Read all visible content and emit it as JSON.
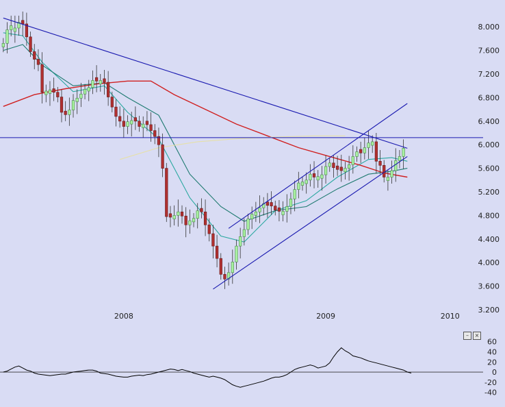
{
  "colors": {
    "background": "#d9dcf4",
    "bull_candle": "#a8f0a0",
    "bear_candle": "#b03030",
    "ma_fast": "#2aa8a0",
    "ma_mid": "#1e7a70",
    "ma_slow": "#d02020",
    "ma_long": "#e6e0a8",
    "trendline": "#1a1ab0",
    "oscillator": "#000000"
  },
  "buttons": {
    "minimize": "–",
    "close": "×"
  },
  "chart_data": [
    {
      "type": "candlestick",
      "title": "",
      "xlabel": "",
      "ylabel": "",
      "ylim": [
        3.2,
        8.2
      ],
      "y_ticks": [
        "8.000",
        "7.600",
        "7.200",
        "6.800",
        "6.400",
        "6.000",
        "5.600",
        "5.200",
        "4.800",
        "4.400",
        "4.000",
        "3.600",
        "3.200"
      ],
      "y_tick_values": [
        8.0,
        7.6,
        7.2,
        6.8,
        6.4,
        6.0,
        5.6,
        5.2,
        4.8,
        4.4,
        4.0,
        3.6,
        3.2
      ],
      "x_ticks": [
        "2008",
        "2009",
        "2010"
      ],
      "x_tick_index": [
        31,
        83,
        115
      ],
      "grid": false,
      "bar_count": 124,
      "close": [
        7.72,
        7.95,
        8.02,
        7.98,
        8.08,
        8.05,
        7.83,
        7.58,
        7.45,
        7.36,
        6.89,
        6.91,
        6.93,
        6.89,
        6.81,
        6.55,
        6.51,
        6.59,
        6.75,
        6.79,
        6.86,
        6.94,
        6.97,
        7.09,
        7.08,
        7.09,
        7.06,
        6.81,
        6.64,
        6.48,
        6.4,
        6.31,
        6.39,
        6.41,
        6.4,
        6.31,
        6.35,
        6.34,
        6.24,
        6.14,
        6.0,
        5.6,
        4.78,
        4.77,
        4.8,
        4.86,
        4.79,
        4.64,
        4.71,
        4.75,
        4.88,
        4.86,
        4.64,
        4.49,
        4.28,
        4.07,
        3.8,
        3.72,
        3.83,
        4.01,
        4.28,
        4.44,
        4.56,
        4.74,
        4.82,
        4.86,
        4.93,
        5.0,
        4.97,
        4.96,
        4.89,
        4.87,
        4.87,
        4.95,
        5.08,
        5.24,
        5.35,
        5.37,
        5.4,
        5.5,
        5.45,
        5.46,
        5.49,
        5.63,
        5.69,
        5.61,
        5.58,
        5.56,
        5.6,
        5.66,
        5.8,
        5.88,
        5.86,
        5.95,
        6.03,
        6.05,
        5.72,
        5.65,
        5.45,
        5.45,
        5.56,
        5.73,
        5.8,
        5.94
      ],
      "bull_or_bear": [
        "up",
        "up",
        "up",
        "up",
        "up",
        "dn",
        "dn",
        "dn",
        "dn",
        "dn",
        "dn",
        "up",
        "up",
        "dn",
        "dn",
        "dn",
        "dn",
        "up",
        "up",
        "up",
        "up",
        "up",
        "up",
        "up",
        "dn",
        "up",
        "dn",
        "dn",
        "dn",
        "dn",
        "dn",
        "dn",
        "up",
        "up",
        "dn",
        "dn",
        "up",
        "dn",
        "dn",
        "dn",
        "dn",
        "dn",
        "dn",
        "dn",
        "up",
        "up",
        "dn",
        "dn",
        "up",
        "up",
        "up",
        "dn",
        "dn",
        "dn",
        "dn",
        "dn",
        "dn",
        "dn",
        "up",
        "up",
        "up",
        "up",
        "up",
        "up",
        "up",
        "up",
        "up",
        "up",
        "dn",
        "dn",
        "dn",
        "dn",
        "up",
        "up",
        "up",
        "up",
        "up",
        "up",
        "up",
        "up",
        "dn",
        "up",
        "up",
        "up",
        "up",
        "dn",
        "dn",
        "dn",
        "up",
        "up",
        "up",
        "up",
        "dn",
        "up",
        "up",
        "up",
        "dn",
        "dn",
        "dn",
        "up",
        "up",
        "up",
        "up",
        "up"
      ],
      "moving_averages": [
        {
          "points": [
            [
              0,
              7.9
            ],
            [
              5,
              7.85
            ],
            [
              10,
              7.4
            ],
            [
              18,
              6.9
            ],
            [
              26,
              7.0
            ],
            [
              32,
              6.55
            ],
            [
              40,
              6.1
            ],
            [
              48,
              5.1
            ],
            [
              56,
              4.45
            ],
            [
              62,
              4.35
            ],
            [
              70,
              4.88
            ],
            [
              78,
              5.05
            ],
            [
              86,
              5.45
            ],
            [
              94,
              5.75
            ],
            [
              100,
              5.78
            ],
            [
              104,
              5.72
            ]
          ]
        },
        {
          "points": [
            [
              0,
              7.6
            ],
            [
              5,
              7.7
            ],
            [
              10,
              7.35
            ],
            [
              18,
              7.0
            ],
            [
              26,
              7.05
            ],
            [
              32,
              6.8
            ],
            [
              40,
              6.5
            ],
            [
              48,
              5.5
            ],
            [
              56,
              4.95
            ],
            [
              62,
              4.7
            ],
            [
              70,
              4.88
            ],
            [
              78,
              4.95
            ],
            [
              86,
              5.25
            ],
            [
              94,
              5.5
            ],
            [
              100,
              5.55
            ],
            [
              104,
              5.6
            ]
          ]
        },
        {
          "points": [
            [
              0,
              6.65
            ],
            [
              8,
              6.85
            ],
            [
              16,
              6.95
            ],
            [
              24,
              7.03
            ],
            [
              32,
              7.08
            ],
            [
              38,
              7.08
            ],
            [
              44,
              6.85
            ],
            [
              52,
              6.6
            ],
            [
              60,
              6.35
            ],
            [
              68,
              6.15
            ],
            [
              76,
              5.95
            ],
            [
              84,
              5.8
            ],
            [
              92,
              5.65
            ],
            [
              98,
              5.52
            ],
            [
              104,
              5.45
            ]
          ]
        },
        {
          "points": [
            [
              30,
              5.75
            ],
            [
              40,
              5.95
            ],
            [
              50,
              6.05
            ],
            [
              60,
              6.1
            ],
            [
              70,
              6.13
            ],
            [
              80,
              6.15
            ],
            [
              88,
              6.15
            ]
          ]
        }
      ],
      "trendlines": [
        {
          "from": [
            0,
            8.15
          ],
          "to": [
            104,
            5.94
          ]
        },
        {
          "from": [
            58,
            4.58
          ],
          "to": [
            104,
            6.7
          ]
        },
        {
          "from": [
            54,
            3.55
          ],
          "to": [
            104,
            5.8
          ]
        },
        {
          "from": [
            -2,
            6.12
          ],
          "to": [
            104,
            6.12
          ]
        }
      ]
    },
    {
      "type": "line",
      "title": "",
      "ylim": [
        -50,
        65
      ],
      "y_ticks": [
        "60",
        "40",
        "20",
        "0",
        "-20",
        "-40"
      ],
      "y_tick_values": [
        60,
        40,
        20,
        0,
        -20,
        -40
      ],
      "zero_line": 0,
      "values": [
        0,
        2,
        6,
        10,
        12,
        8,
        4,
        2,
        -2,
        -4,
        -5,
        -6,
        -7,
        -6,
        -5,
        -4,
        -4,
        -2,
        0,
        1,
        2,
        3,
        4,
        4,
        2,
        -2,
        -3,
        -4,
        -6,
        -8,
        -9,
        -10,
        -10,
        -8,
        -7,
        -6,
        -7,
        -5,
        -4,
        -2,
        0,
        2,
        4,
        6,
        5,
        3,
        5,
        3,
        1,
        -2,
        -4,
        -6,
        -8,
        -10,
        -8,
        -10,
        -12,
        -15,
        -20,
        -25,
        -28,
        -30,
        -28,
        -26,
        -24,
        -22,
        -20,
        -18,
        -15,
        -12,
        -10,
        -10,
        -8,
        -5,
        0,
        5,
        8,
        10,
        12,
        14,
        12,
        8,
        10,
        12,
        18,
        30,
        40,
        48,
        42,
        38,
        32,
        30,
        28,
        25,
        22,
        20,
        18,
        16,
        14,
        12,
        10,
        8,
        6,
        4,
        0,
        -2
      ]
    }
  ]
}
